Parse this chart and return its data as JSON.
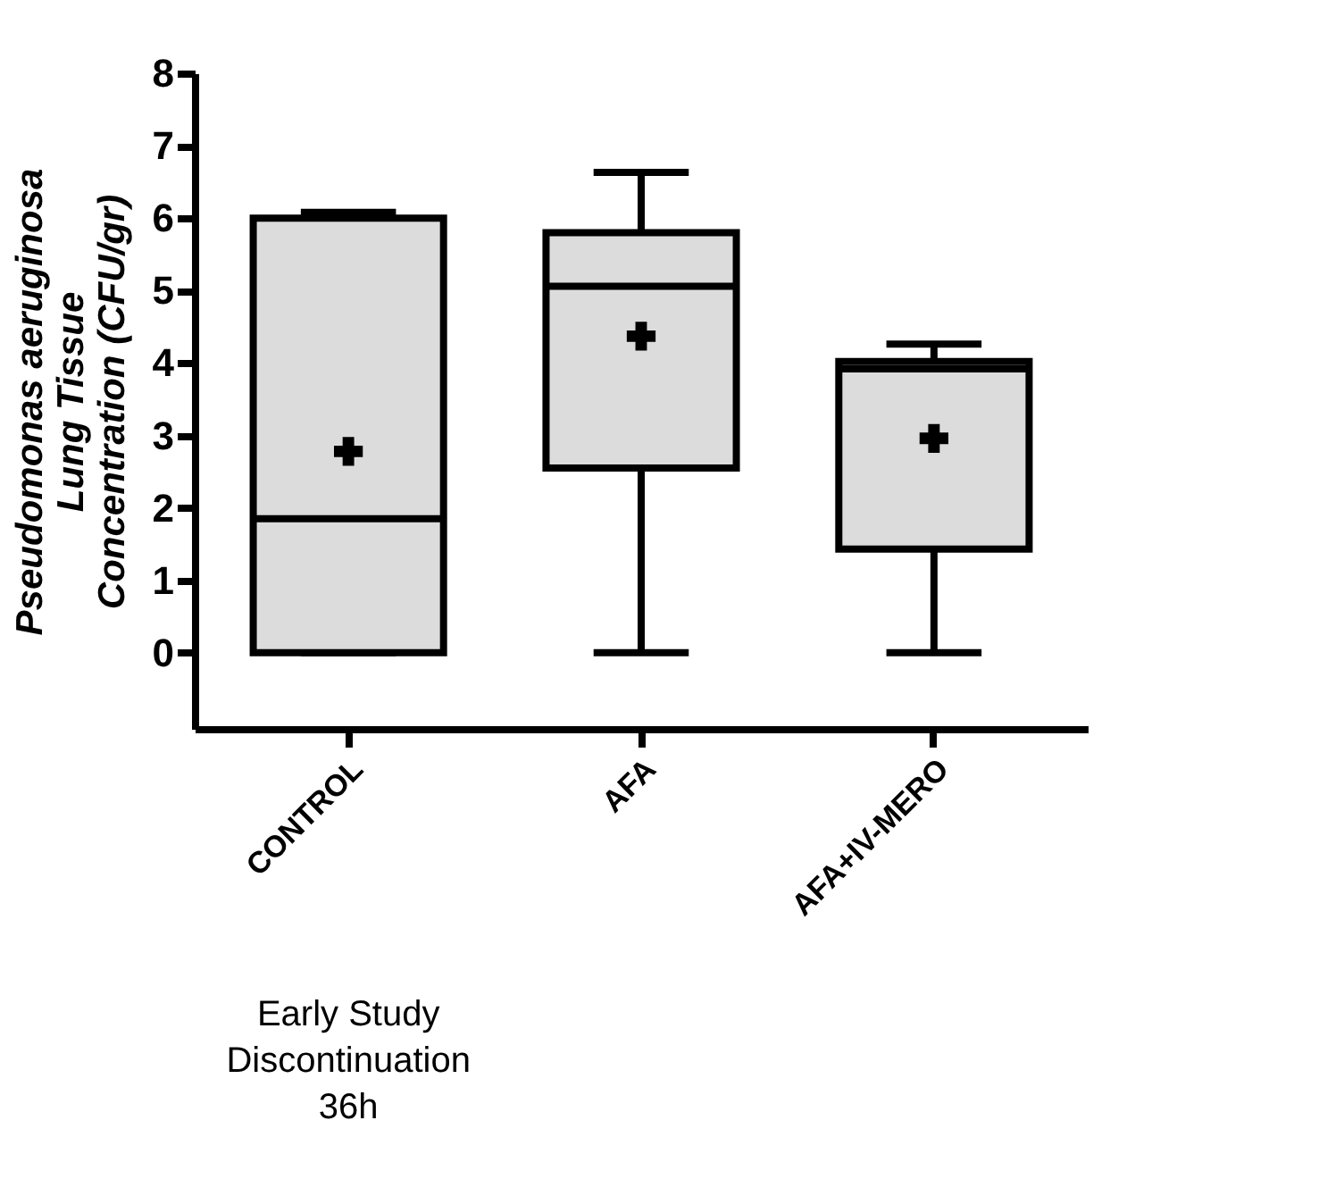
{
  "chart_data": {
    "type": "box",
    "categories": [
      "CONTROL",
      "AFA",
      "AFA+IV-MERO"
    ],
    "boxes": [
      {
        "low": 0,
        "q1": 0,
        "median": 1.85,
        "q3": 6.0,
        "high": 6.08,
        "mean": 2.78
      },
      {
        "low": 0,
        "q1": 2.55,
        "median": 5.06,
        "q3": 5.8,
        "high": 6.63,
        "mean": 4.37
      },
      {
        "low": 0,
        "q1": 1.43,
        "median": 3.92,
        "q3": 4.02,
        "high": 4.26,
        "mean": 2.96
      }
    ],
    "color": "#dcdcdc",
    "ylabel": [
      "Pseudomonas aeruginosa",
      "Lung Tissue",
      "Concentration (CFU/gr)"
    ],
    "ylim": [
      -1.05,
      8
    ],
    "yticks": [
      0,
      1,
      2,
      3,
      4,
      5,
      6,
      7,
      8
    ],
    "grid": false,
    "annotations": [
      "Early Study\nDiscontinuation\n36h"
    ]
  }
}
